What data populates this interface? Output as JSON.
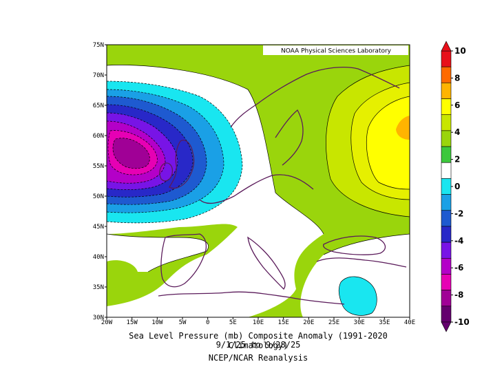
{
  "title_line1": "Sea Level Pressure (mb) Composite Anomaly (1991-2020 Climatology)",
  "title_line2": "9/1/25  to 9/28/25",
  "source": "NCEP/NCAR Reanalysis",
  "watermark": "NOAA Physical Sciences Laboratory",
  "lat_labels": [
    "75N",
    "70N",
    "65N",
    "60N",
    "55N",
    "50N",
    "45N",
    "40N",
    "35N",
    "30N"
  ],
  "lon_labels": [
    "20W",
    "15W",
    "10W",
    "5W",
    "0",
    "5E",
    "10E",
    "15E",
    "20E",
    "25E",
    "30E",
    "35E",
    "40E"
  ],
  "colorbar": {
    "labels": [
      "10",
      "8",
      "6",
      "4",
      "2",
      "0",
      "-2",
      "-4",
      "-6",
      "-8",
      "-10"
    ],
    "colors": [
      "#e8101a",
      "#ff6a00",
      "#ffb400",
      "#ffff00",
      "#c8e600",
      "#9ad50c",
      "#3cc83c",
      "#ffffff",
      "#19e6f0",
      "#1aa0e6",
      "#1e5ad0",
      "#2828c8",
      "#7814e6",
      "#b400c8",
      "#e600b4",
      "#a00096",
      "#64006e"
    ]
  },
  "map_data": {
    "region": {
      "lon_min": -20,
      "lon_max": 40,
      "lat_min": 30,
      "lat_max": 75
    },
    "anomaly_centers": [
      {
        "sign": "negative",
        "lon": -15,
        "lat": 58,
        "min_value": -9
      },
      {
        "sign": "positive",
        "lon": 38,
        "lat": 59,
        "max_value": 5
      },
      {
        "sign": "negative",
        "lon": 32,
        "lat": 33,
        "min_value": -2
      }
    ]
  }
}
